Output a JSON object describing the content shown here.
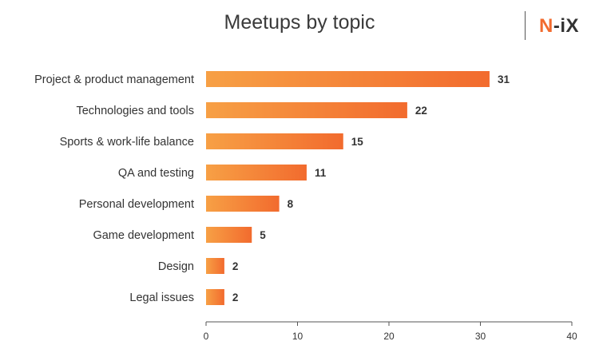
{
  "header": {
    "title": "Meetups by topic",
    "logo_text_accent": "N",
    "logo_text_rest": "-iX"
  },
  "colors": {
    "bar_start": "#f7a045",
    "bar_end": "#f26b2e",
    "axis": "#555555",
    "text": "#333333"
  },
  "chart_data": {
    "type": "bar",
    "orientation": "horizontal",
    "title": "Meetups by topic",
    "categories": [
      "Project & product management",
      "Technologies and tools",
      "Sports & work-life balance",
      "QA and testing",
      "Personal development",
      "Game development",
      "Design",
      "Legal issues"
    ],
    "values": [
      31,
      22,
      15,
      11,
      8,
      5,
      2,
      2
    ],
    "xlim": [
      0,
      40
    ],
    "xticks": [
      0,
      10,
      20,
      30,
      40
    ],
    "grid": false,
    "legend": "none",
    "data_labels": true
  }
}
